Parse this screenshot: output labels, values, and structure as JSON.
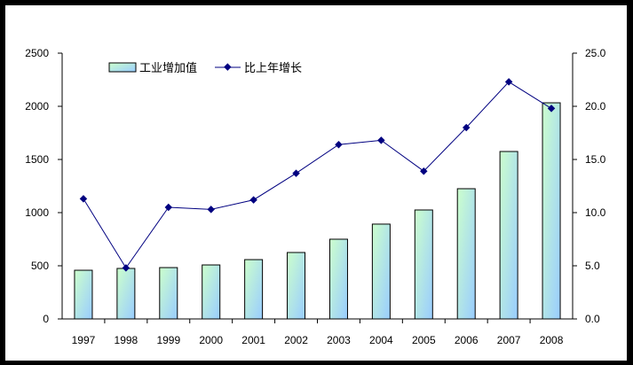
{
  "chart_data": {
    "type": "bar",
    "title": "",
    "xlabel": "",
    "ylabel": "",
    "categories": [
      "1997",
      "1998",
      "1999",
      "2000",
      "2001",
      "2002",
      "2003",
      "2004",
      "2005",
      "2006",
      "2007",
      "2008"
    ],
    "series": [
      {
        "name": "工业增加值",
        "type": "bar",
        "axis": "left",
        "values": [
          458,
          475,
          483,
          508,
          558,
          625,
          750,
          892,
          1025,
          1225,
          1575,
          2033
        ]
      },
      {
        "name": "比上年增长",
        "type": "line",
        "axis": "right",
        "values": [
          11.3,
          4.8,
          10.5,
          10.3,
          11.2,
          13.7,
          16.4,
          16.8,
          13.9,
          18.0,
          22.3,
          19.8
        ]
      }
    ],
    "ylim": [
      0,
      2500
    ],
    "y_ticks": [
      "0",
      "500",
      "1000",
      "1500",
      "2000",
      "2500"
    ],
    "y2lim": [
      0,
      25
    ],
    "y2_ticks": [
      "0.0",
      "5.0",
      "10.0",
      "15.0",
      "20.0",
      "25.0"
    ],
    "grid": false,
    "legend_position": "top-left inside"
  },
  "legend": {
    "bar_label": "工业增加值",
    "line_label": "比上年增长"
  },
  "colors": {
    "frame": "#000000",
    "bar_gradient_top": "#ccffcc",
    "bar_gradient_bottom": "#99ccff",
    "bar_border": "#000000",
    "line": "#000080",
    "marker": "#000080"
  }
}
